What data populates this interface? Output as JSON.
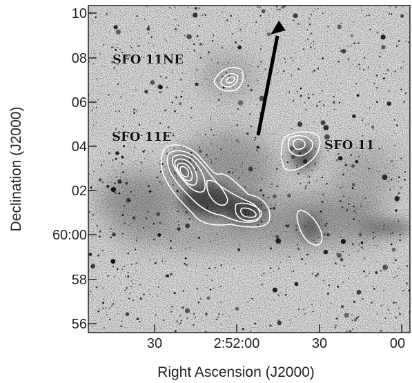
{
  "figure": {
    "x_axis_title": "Right Ascension (J2000)",
    "y_axis_title": "Declination (J2000)",
    "x_ticks": [
      "30",
      "2:52:00",
      "30",
      "00"
    ],
    "y_ticks": [
      "10",
      "08",
      "06",
      "04",
      "02",
      "60:00",
      "58",
      "56"
    ],
    "labels": {
      "ne": "SFO 11NE",
      "e": "SFO 11E",
      "main": "SFO 11"
    },
    "contour_color": "#ffffff",
    "arrow_color": "#000000",
    "arrow_icon": "direction-arrow-icon"
  }
}
